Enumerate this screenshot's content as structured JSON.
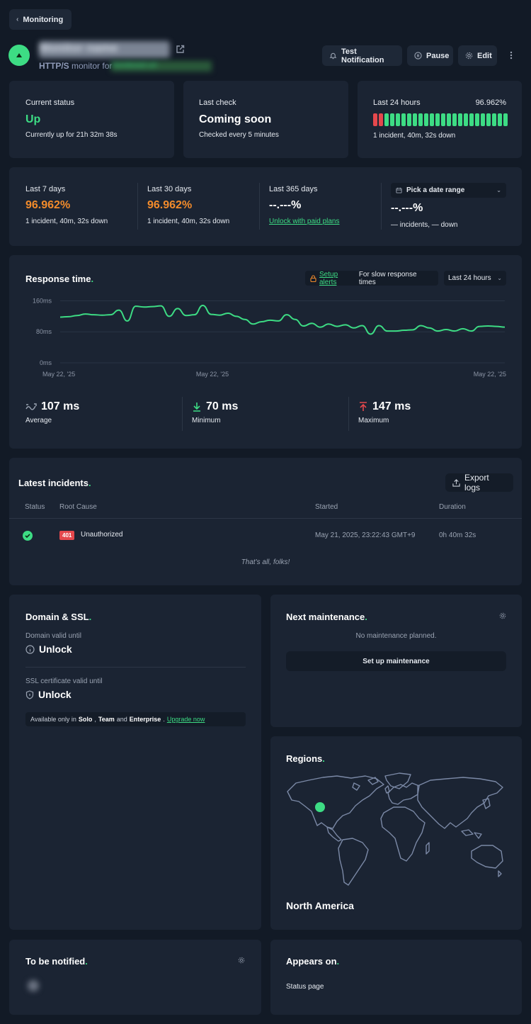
{
  "nav": {
    "back_label": "Monitoring"
  },
  "monitor": {
    "name": "Monitor name",
    "type": "HTTP/S",
    "type_suffix": "monitor for",
    "url": "monitored url"
  },
  "actions": {
    "test": "Test Notification",
    "pause": "Pause",
    "edit": "Edit"
  },
  "status_cards": {
    "current": {
      "label": "Current status",
      "value": "Up",
      "detail": "Currently up for 21h 32m 38s"
    },
    "last_check": {
      "label": "Last check",
      "value": "Coming soon",
      "detail": "Checked every 5 minutes"
    },
    "last24": {
      "label": "Last 24 hours",
      "percent": "96.962%",
      "detail": "1 incident, 40m, 32s down",
      "bars": [
        "down",
        "down",
        "up",
        "up",
        "up",
        "up",
        "up",
        "up",
        "up",
        "up",
        "up",
        "up",
        "up",
        "up",
        "up",
        "up",
        "up",
        "up",
        "up",
        "up",
        "up",
        "up",
        "up",
        "up"
      ]
    }
  },
  "uptime": {
    "d7": {
      "label": "Last 7 days",
      "value": "96.962%",
      "detail": "1 incident, 40m, 32s down"
    },
    "d30": {
      "label": "Last 30 days",
      "value": "96.962%",
      "detail": "1 incident, 40m, 32s down"
    },
    "d365": {
      "label": "Last 365 days",
      "value": "--.---%",
      "link": "Unlock with paid plans"
    },
    "custom": {
      "picker": "Pick a date range",
      "value": "--.---%",
      "detail": "— incidents, — down"
    }
  },
  "response": {
    "title": "Response time",
    "alert_link": "Setup alerts",
    "alert_text": "For slow response times",
    "range": "Last 24 hours",
    "avg_value": "107 ms",
    "avg_label": "Average",
    "min_value": "70 ms",
    "min_label": "Minimum",
    "max_value": "147 ms",
    "max_label": "Maximum"
  },
  "chart_data": {
    "type": "line",
    "ylim": [
      0,
      170
    ],
    "y_ticks": [
      "160ms",
      "80ms",
      "0ms"
    ],
    "y_tick_values": [
      160,
      80,
      0
    ],
    "x_ticks": [
      "May 22, '25",
      "May 22, '25",
      "May 22, '25"
    ],
    "x_tick_positions": [
      0,
      0.34,
      1
    ],
    "series": [
      {
        "values": [
          118,
          119,
          122,
          126,
          124,
          123,
          124,
          136,
          108,
          146,
          144,
          145,
          147,
          120,
          140,
          122,
          124,
          148,
          125,
          123,
          128,
          120,
          112,
          100,
          106,
          110,
          108,
          124,
          112,
          95,
          102,
          92,
          100,
          94,
          98,
          90,
          96,
          74,
          96,
          82,
          82,
          84,
          85,
          96,
          90,
          82,
          86,
          82,
          88,
          82,
          94,
          95,
          94,
          92
        ]
      }
    ]
  },
  "incidents": {
    "title": "Latest incidents",
    "export": "Export logs",
    "columns": {
      "status": "Status",
      "cause": "Root Cause",
      "started": "Started",
      "duration": "Duration"
    },
    "rows": [
      {
        "code": "401",
        "cause": "Unauthorized",
        "started": "May 21, 2025, 23:22:43 GMT+9",
        "duration": "0h 40m 32s"
      }
    ],
    "footer": "That's all, folks!"
  },
  "domain": {
    "title": "Domain & SSL",
    "domain_label": "Domain valid until",
    "domain_value": "Unlock",
    "ssl_label": "SSL certificate valid until",
    "ssl_value": "Unlock",
    "note_prefix": "Available only in",
    "plan1": "Solo",
    "plan2": "Team",
    "and": "and",
    "plan3": "Enterprise",
    "upgrade": "Upgrade now"
  },
  "maintenance": {
    "title": "Next maintenance",
    "empty": "No maintenance planned.",
    "button": "Set up maintenance"
  },
  "regions": {
    "title": "Regions",
    "region": "North America"
  },
  "notified": {
    "title": "To be notified"
  },
  "appears": {
    "title": "Appears on",
    "item": "Status page"
  },
  "colors": {
    "accent": "#3ddc84",
    "down": "#e5484d",
    "warn": "#f28b2b",
    "card": "#1b2433",
    "bg": "#121a26"
  }
}
